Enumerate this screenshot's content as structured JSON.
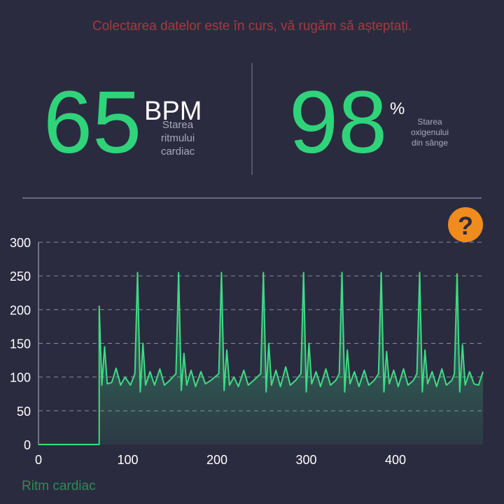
{
  "header": {
    "status": "Colectarea datelor este în curs, vă rugăm să așteptați."
  },
  "metrics": [
    {
      "value": "65",
      "unit": "BPM",
      "label": [
        "Starea",
        "ritmului",
        "cardiac"
      ]
    },
    {
      "value": "98",
      "unit": "%",
      "label": [
        "Starea",
        "oxigenului",
        "din sânge"
      ]
    }
  ],
  "help": "?",
  "chart_data": {
    "type": "line",
    "xlim": [
      0,
      498
    ],
    "ylim": [
      0,
      300
    ],
    "xticks": [
      0,
      100,
      200,
      300,
      400
    ],
    "yticks": [
      0,
      50,
      100,
      150,
      200,
      250,
      300
    ],
    "grid": true,
    "legend": "bottom-left",
    "x": [
      0,
      68,
      68,
      71,
      74,
      77,
      82,
      87,
      92,
      97,
      103,
      108,
      111,
      114,
      117,
      120,
      125,
      130,
      136,
      141,
      147,
      154,
      157,
      160,
      163,
      166,
      171,
      176,
      182,
      187,
      193,
      202,
      205,
      208,
      211,
      214,
      219,
      224,
      230,
      235,
      241,
      249,
      252,
      255,
      258,
      261,
      266,
      271,
      277,
      282,
      288,
      294,
      297,
      300,
      303,
      306,
      311,
      316,
      322,
      327,
      333,
      337,
      340,
      343,
      346,
      349,
      354,
      359,
      365,
      370,
      376,
      381,
      384,
      387,
      390,
      393,
      398,
      403,
      409,
      414,
      420,
      424,
      427,
      430,
      433,
      436,
      441,
      446,
      452,
      457,
      463,
      466,
      469,
      472,
      475,
      478,
      483,
      488,
      493,
      498
    ],
    "series": [
      {
        "name": "Ritm cardiac",
        "color": "#3ddc84",
        "values": [
          0,
          0,
          205,
          88,
          145,
          90,
          92,
          113,
          88,
          100,
          88,
          105,
          255,
          78,
          150,
          88,
          108,
          88,
          112,
          88,
          95,
          105,
          255,
          80,
          135,
          88,
          110,
          86,
          108,
          90,
          95,
          105,
          255,
          80,
          140,
          88,
          100,
          86,
          110,
          88,
          95,
          105,
          255,
          78,
          150,
          88,
          110,
          86,
          115,
          88,
          95,
          105,
          255,
          78,
          150,
          90,
          108,
          86,
          112,
          88,
          95,
          105,
          255,
          78,
          140,
          90,
          108,
          86,
          110,
          88,
          95,
          105,
          255,
          78,
          138,
          90,
          110,
          86,
          112,
          88,
          95,
          105,
          255,
          78,
          140,
          90,
          108,
          86,
          112,
          88,
          95,
          105,
          253,
          78,
          148,
          88,
          108,
          90,
          88,
          108
        ]
      }
    ]
  }
}
